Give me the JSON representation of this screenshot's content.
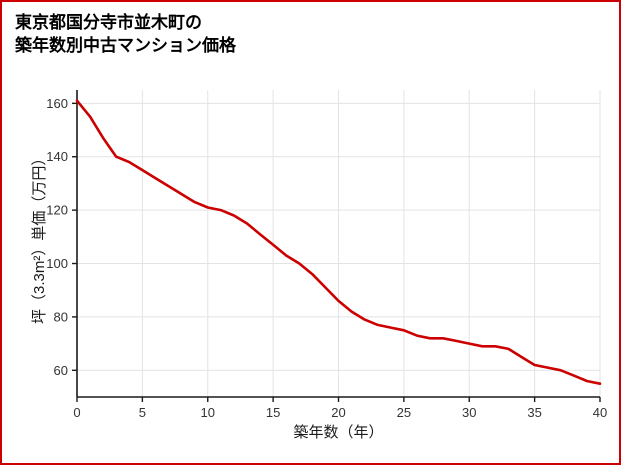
{
  "page": {
    "border_color": "#cc0000",
    "background": "#ffffff"
  },
  "header": {
    "title_lines": [
      "東京都国分寺市並木町の",
      "築年数別中古マンション価格"
    ]
  },
  "chart_data": {
    "type": "line",
    "title": "東京都国分寺市並木町の築年数別中古マンション価格",
    "xlabel": "築年数（年）",
    "ylabel": "坪（3.3m²）単価（万円）",
    "x": [
      0,
      1,
      2,
      3,
      4,
      5,
      6,
      7,
      8,
      9,
      10,
      11,
      12,
      13,
      14,
      15,
      16,
      17,
      18,
      19,
      20,
      21,
      22,
      23,
      24,
      25,
      26,
      27,
      28,
      29,
      30,
      31,
      32,
      33,
      34,
      35,
      36,
      37,
      38,
      39,
      40
    ],
    "values": [
      161,
      155,
      147,
      140,
      138,
      135,
      132,
      129,
      126,
      123,
      121,
      120,
      118,
      115,
      111,
      107,
      103,
      100,
      96,
      91,
      86,
      82,
      79,
      77,
      76,
      75,
      73,
      72,
      72,
      71,
      70,
      69,
      69,
      68,
      65,
      62,
      61,
      60,
      58,
      56,
      55
    ],
    "xlim": [
      0,
      40
    ],
    "ylim": [
      50,
      165
    ],
    "x_ticks": [
      0,
      5,
      10,
      15,
      20,
      25,
      30,
      35,
      40
    ],
    "y_ticks": [
      60,
      80,
      100,
      120,
      140,
      160
    ],
    "grid": true,
    "legend": "none",
    "line_color": "#cc0000",
    "grid_color": "#e3e3e3",
    "axis_color": "#1a1a1a",
    "tick_label_color": "#333333"
  }
}
